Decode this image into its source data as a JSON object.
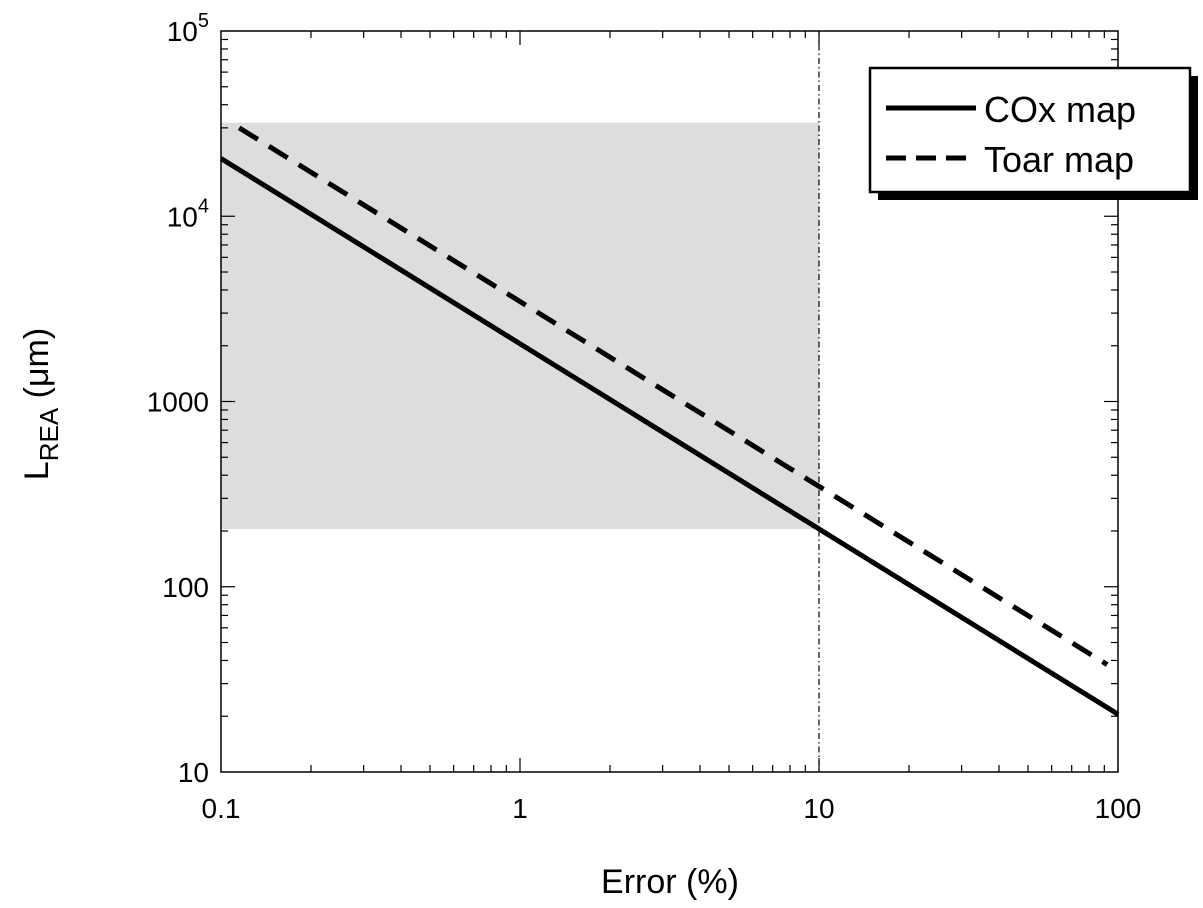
{
  "chart_data": {
    "type": "line",
    "title": "",
    "xlabel": "Error  (%)",
    "ylabel": {
      "main": "L",
      "sub": "REA",
      "unit": " (μm)"
    },
    "xscale": "log",
    "yscale": "log",
    "xlim": [
      0.1,
      100
    ],
    "ylim": [
      10,
      100000
    ],
    "grid": false,
    "legend_position": "top-right",
    "x_ticks": [
      {
        "value": 0.1,
        "label": "0.1"
      },
      {
        "value": 1,
        "label": "1"
      },
      {
        "value": 10,
        "label": "10"
      },
      {
        "value": 100,
        "label": "100"
      }
    ],
    "y_ticks": [
      {
        "value": 10,
        "label": "10",
        "sup": ""
      },
      {
        "value": 100,
        "label": "100",
        "sup": ""
      },
      {
        "value": 1000,
        "label": "1000",
        "sup": ""
      },
      {
        "value": 10000,
        "label": "10",
        "sup": "4"
      },
      {
        "value": 100000,
        "label": "10",
        "sup": "5"
      }
    ],
    "series": [
      {
        "name": "COx map",
        "style": "solid",
        "color": "#000000",
        "x": [
          0.1,
          100
        ],
        "y": [
          20500,
          20.5
        ]
      },
      {
        "name": "Toar map",
        "style": "dashed",
        "color": "#000000",
        "x": [
          0.115,
          92
        ],
        "y": [
          30000,
          38
        ]
      }
    ],
    "shaded_region": {
      "x": [
        0.1,
        10
      ],
      "y": [
        205,
        32000
      ],
      "color": "#dcdddd"
    },
    "reference_line": {
      "x": 10,
      "style": "dash-dot",
      "color": "#000000"
    }
  }
}
